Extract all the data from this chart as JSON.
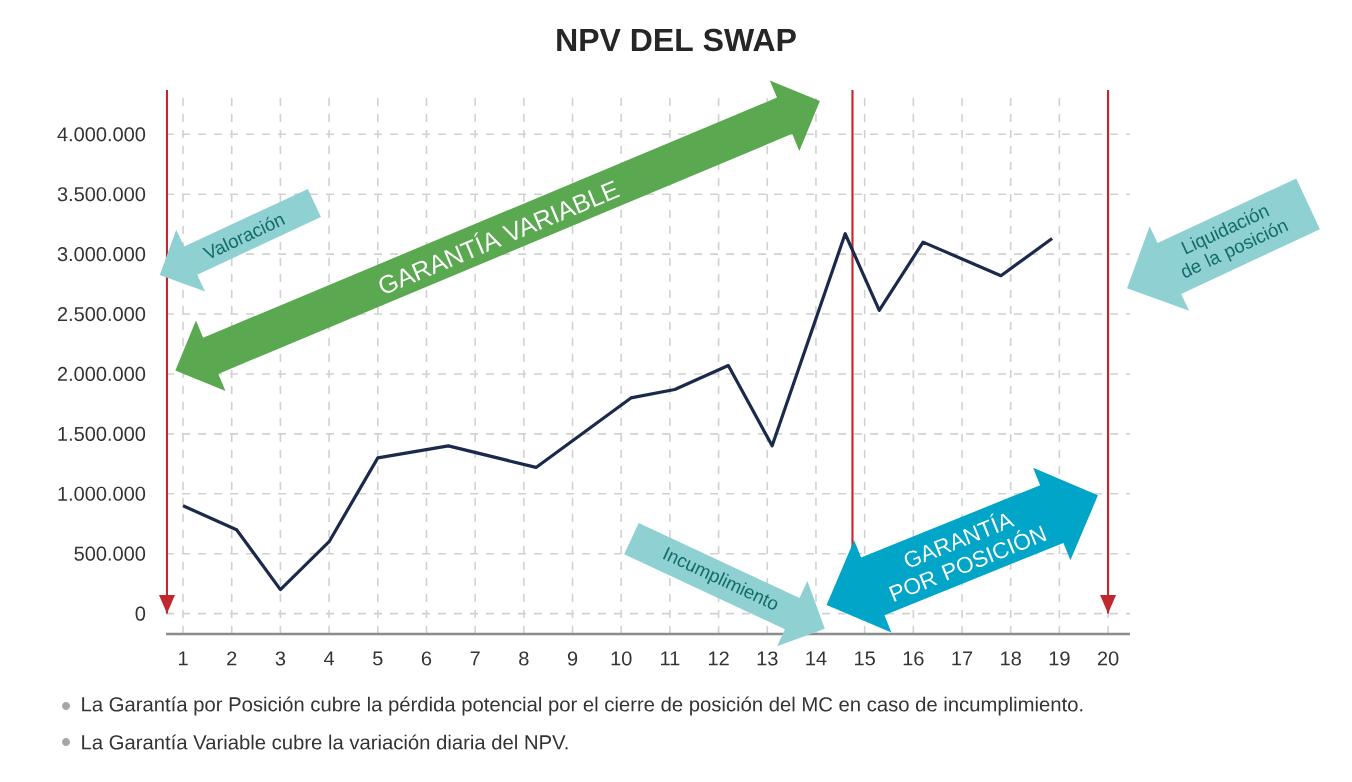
{
  "chart_data": {
    "type": "line",
    "title": "NPV DEL SWAP",
    "x": [
      1,
      2.1,
      3,
      4,
      5,
      6.45,
      8.25,
      10.2,
      11.1,
      12.2,
      13.1,
      14.6,
      15.3,
      16.2,
      17.8,
      18.85
    ],
    "values": [
      900000,
      700000,
      200000,
      600000,
      1300000,
      1400000,
      1220000,
      1800000,
      1870000,
      2070000,
      1400000,
      3170000,
      2530000,
      3100000,
      2820000,
      3130000
    ],
    "color": "#1b2a4a",
    "marker": "none",
    "line_style": "solid",
    "grid": true,
    "xlim": [
      0.65,
      20.45
    ],
    "xticks": [
      1,
      2,
      3,
      4,
      5,
      6,
      7,
      8,
      9,
      10,
      11,
      12,
      13,
      14,
      15,
      16,
      17,
      18,
      19,
      20
    ],
    "ylim": [
      -170000,
      4370000
    ],
    "yticks": [
      0,
      {
        "value": 500000,
        "label": "500.000"
      },
      {
        "value": 1000000,
        "label": "1.000.000"
      },
      {
        "value": 1500000,
        "label": "1.500.000"
      },
      {
        "value": 2000000,
        "label": "2.000.000"
      },
      {
        "value": 2500000,
        "label": "2.500.000"
      },
      {
        "value": 3000000,
        "label": "3.000.000"
      },
      {
        "value": 3500000,
        "label": "3.500.000"
      },
      {
        "value": 4000000,
        "label": "4.000.000"
      }
    ],
    "ref_lines": [
      {
        "axis": "x",
        "value": 0.67,
        "color": "#c0282d"
      },
      {
        "axis": "x",
        "value": 14.75,
        "color": "#c0282d"
      },
      {
        "axis": "x",
        "value": 20,
        "color": "#c0282d"
      }
    ],
    "annotations": [
      "Valoración",
      "GARANTÍA VARIABLE",
      "Liquidación de la posición",
      "Incumplimiento",
      "GARANTÍA POR POSICIÓN",
      "La Garantía por Posición cubre la pérdida potencial por el cierre de posición del MC en caso de incumplimiento.",
      "La Garantía Variable cubre la variación diaria del NPV."
    ]
  }
}
